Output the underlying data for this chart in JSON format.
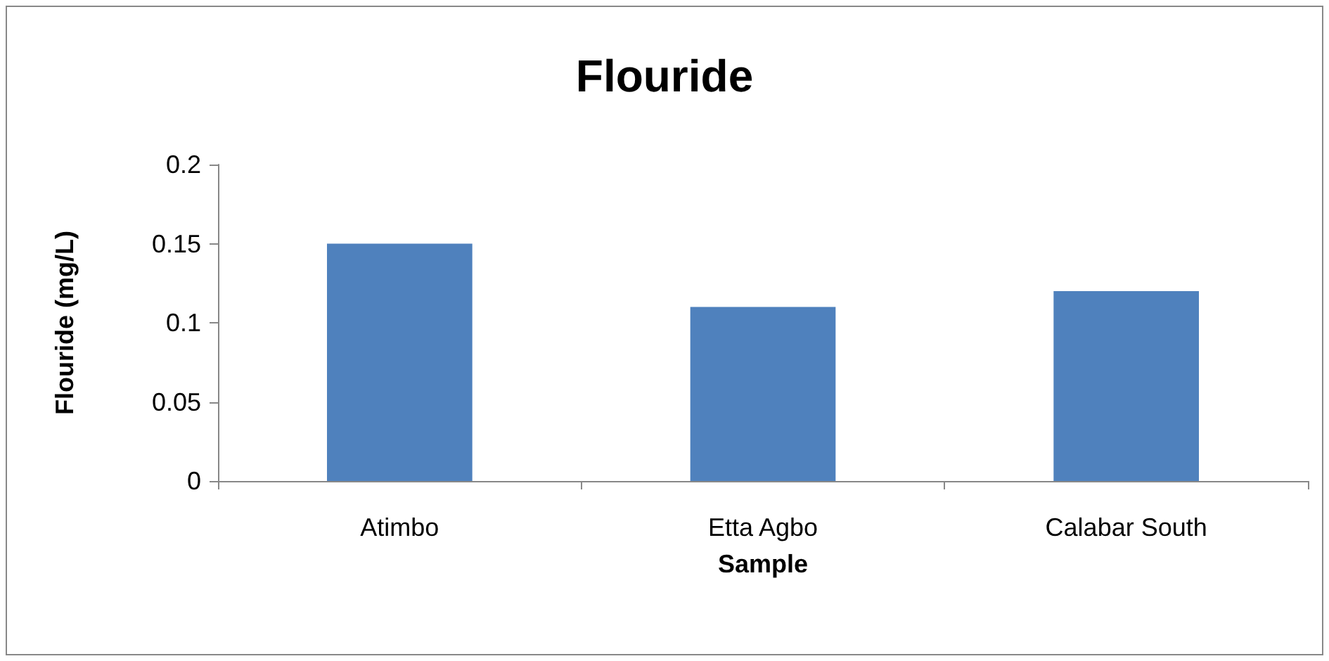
{
  "chart_data": {
    "type": "bar",
    "title": "Flouride",
    "xlabel": "Sample",
    "ylabel": "Flouride (mg/L)",
    "categories": [
      "Atimbo",
      "Etta Agbo",
      "Calabar South"
    ],
    "series": [
      {
        "color": "#4f81bd",
        "values": [
          0.15,
          0.11,
          0.12
        ]
      }
    ],
    "ylim": [
      0,
      0.2
    ],
    "yticks": [
      0,
      0.05,
      0.1,
      0.15,
      0.2
    ],
    "grid": false
  }
}
